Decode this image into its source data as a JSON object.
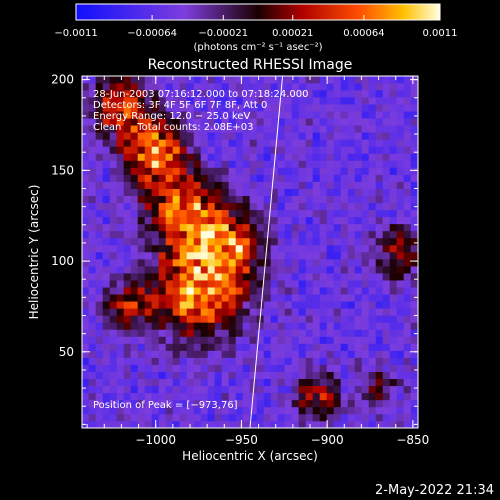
{
  "chart_data": {
    "type": "heatmap",
    "title": "Reconstructed RHESSI Image",
    "xlabel": "Heliocentric X (arcsec)",
    "ylabel": "Heliocentric Y (arcsec)",
    "xlim": [
      -1043,
      -847
    ],
    "ylim": [
      8,
      202
    ],
    "x_ticks": [
      -1000,
      -950,
      -900,
      -850
    ],
    "x_tick_labels": [
      "−1000",
      "−950",
      "−900",
      "−850"
    ],
    "y_ticks": [
      50,
      100,
      150,
      200
    ],
    "y_tick_labels": [
      "50",
      "100",
      "150",
      "200"
    ],
    "colorbar": {
      "range": [
        -0.0011,
        0.0011
      ],
      "ticks": [
        -0.0011,
        -0.00064,
        -0.00021,
        0.00021,
        0.00064,
        0.0011
      ],
      "tick_labels": [
        "−0.0011",
        "−0.00064",
        "−0.00021",
        "0.00021",
        "0.00064",
        "0.0011"
      ],
      "unit_label": "(photons cm⁻² s⁻¹ asec⁻²)"
    },
    "annotations": [
      "28-Jun-2003 07:16:12.000 to 07:18:24.000",
      "Detectors: 3F 4F 5F 6F 7F 8F, Att 0",
      "Energy Range: 12.0 − 25.0 keV",
      "Clean     Total counts: 2.08E+03"
    ],
    "peak_label": "Position of Peak = [−973,76]",
    "peak_position": [
      -973,
      76
    ],
    "limb_line": [
      [
        -926,
        202
      ],
      [
        -945,
        8
      ]
    ],
    "emission_sources": [
      {
        "x": -975,
        "y": 85,
        "sigma": 18,
        "amp": 1.0
      },
      {
        "x": -960,
        "y": 110,
        "sigma": 14,
        "amp": 0.85
      },
      {
        "x": -1000,
        "y": 160,
        "sigma": 12,
        "amp": 0.9
      },
      {
        "x": -1020,
        "y": 185,
        "sigma": 12,
        "amp": 0.75
      },
      {
        "x": -985,
        "y": 130,
        "sigma": 14,
        "amp": 0.8
      },
      {
        "x": -1015,
        "y": 75,
        "sigma": 10,
        "amp": 0.55
      },
      {
        "x": -905,
        "y": 25,
        "sigma": 9,
        "amp": 0.6
      },
      {
        "x": -858,
        "y": 105,
        "sigma": 10,
        "amp": 0.55
      },
      {
        "x": -870,
        "y": 30,
        "sigma": 8,
        "amp": 0.4
      }
    ],
    "timestamp": "2-May-2022 21:34"
  }
}
